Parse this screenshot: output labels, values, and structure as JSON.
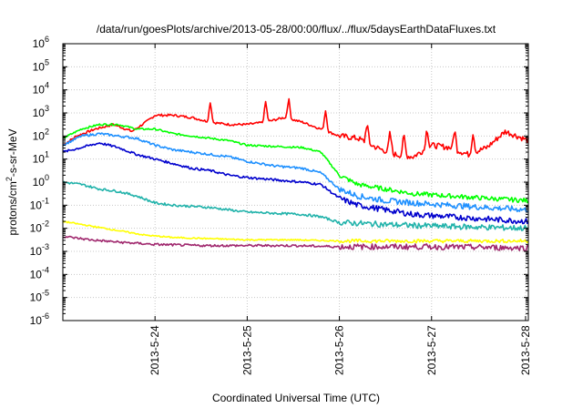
{
  "chart_data": {
    "type": "line",
    "title": "/data/run/goesPlots/archive/2013-05-28/00:00/flux/../flux/5daysEarthDataFluxes.txt",
    "xlabel": "Coordinated Universal Time (UTC)",
    "ylabel_parts": [
      "protons/cm",
      "2",
      "-s-sr-MeV"
    ],
    "ylog": true,
    "ylim_exp": [
      -6,
      6
    ],
    "xlim_days": [
      0,
      5.05
    ],
    "grid": true,
    "y_ticks": [
      {
        "base": "10",
        "exp": "6"
      },
      {
        "base": "10",
        "exp": "5"
      },
      {
        "base": "10",
        "exp": "4"
      },
      {
        "base": "10",
        "exp": "3"
      },
      {
        "base": "10",
        "exp": "2"
      },
      {
        "base": "10",
        "exp": "1"
      },
      {
        "base": "10",
        "exp": "0"
      },
      {
        "base": "10",
        "exp": "-1"
      },
      {
        "base": "10",
        "exp": "-2"
      },
      {
        "base": "10",
        "exp": "-3"
      },
      {
        "base": "10",
        "exp": "-4"
      },
      {
        "base": "10",
        "exp": "-5"
      },
      {
        "base": "10",
        "exp": "-6"
      }
    ],
    "x_ticks": [
      {
        "label": "2013-5-24",
        "day": 1.0
      },
      {
        "label": "2013-5-25",
        "day": 2.0
      },
      {
        "label": "2013-5-26",
        "day": 3.0
      },
      {
        "label": "2013-5-27",
        "day": 4.0
      },
      {
        "label": "2013-5-28",
        "day": 5.02
      }
    ],
    "series": [
      {
        "color": "#ff0000",
        "noise": 0.05,
        "spikes": true,
        "points": [
          [
            0,
            1.6
          ],
          [
            0.15,
            2.0
          ],
          [
            0.35,
            2.3
          ],
          [
            0.55,
            2.5
          ],
          [
            0.75,
            2.2
          ],
          [
            0.9,
            2.6
          ],
          [
            1.0,
            2.9
          ],
          [
            1.2,
            2.9
          ],
          [
            1.4,
            2.8
          ],
          [
            1.6,
            2.6
          ],
          [
            1.8,
            2.5
          ],
          [
            2.0,
            2.5
          ],
          [
            2.2,
            2.6
          ],
          [
            2.4,
            2.8
          ],
          [
            2.6,
            2.6
          ],
          [
            2.8,
            2.3
          ],
          [
            3.0,
            2.0
          ],
          [
            3.2,
            1.9
          ],
          [
            3.4,
            1.5
          ],
          [
            3.6,
            1.2
          ],
          [
            3.8,
            1.1
          ],
          [
            4.0,
            1.6
          ],
          [
            4.2,
            1.5
          ],
          [
            4.4,
            1.2
          ],
          [
            4.6,
            1.5
          ],
          [
            4.8,
            2.2
          ],
          [
            5.05,
            1.8
          ]
        ]
      },
      {
        "color": "#00ff00",
        "noise": 0.04,
        "points": [
          [
            0,
            1.9
          ],
          [
            0.2,
            2.3
          ],
          [
            0.4,
            2.5
          ],
          [
            0.6,
            2.5
          ],
          [
            0.8,
            2.3
          ],
          [
            1.0,
            2.3
          ],
          [
            1.2,
            2.1
          ],
          [
            1.4,
            2.0
          ],
          [
            1.6,
            1.9
          ],
          [
            1.8,
            1.8
          ],
          [
            2.0,
            1.6
          ],
          [
            2.3,
            1.55
          ],
          [
            2.6,
            1.5
          ],
          [
            2.8,
            1.3
          ],
          [
            3.0,
            0.3
          ],
          [
            3.2,
            -0.1
          ],
          [
            3.5,
            -0.3
          ],
          [
            3.8,
            -0.5
          ],
          [
            4.2,
            -0.6
          ],
          [
            4.6,
            -0.7
          ],
          [
            5.05,
            -0.8
          ]
        ]
      },
      {
        "color": "#1e90ff",
        "noise": 0.05,
        "points": [
          [
            0,
            1.6
          ],
          [
            0.2,
            2.0
          ],
          [
            0.4,
            2.1
          ],
          [
            0.6,
            2.0
          ],
          [
            0.8,
            1.9
          ],
          [
            1.0,
            1.6
          ],
          [
            1.2,
            1.4
          ],
          [
            1.4,
            1.3
          ],
          [
            1.6,
            1.2
          ],
          [
            1.8,
            1.1
          ],
          [
            2.0,
            0.9
          ],
          [
            2.3,
            0.7
          ],
          [
            2.6,
            0.6
          ],
          [
            2.8,
            0.4
          ],
          [
            3.0,
            -0.3
          ],
          [
            3.2,
            -0.6
          ],
          [
            3.5,
            -0.8
          ],
          [
            3.8,
            -0.9
          ],
          [
            4.2,
            -1.0
          ],
          [
            4.6,
            -1.1
          ],
          [
            5.05,
            -1.2
          ]
        ]
      },
      {
        "color": "#0000cd",
        "noise": 0.05,
        "points": [
          [
            0,
            1.3
          ],
          [
            0.2,
            1.5
          ],
          [
            0.4,
            1.7
          ],
          [
            0.6,
            1.5
          ],
          [
            0.8,
            1.2
          ],
          [
            1.0,
            1.0
          ],
          [
            1.2,
            0.8
          ],
          [
            1.4,
            0.6
          ],
          [
            1.6,
            0.5
          ],
          [
            1.8,
            0.3
          ],
          [
            2.0,
            0.2
          ],
          [
            2.3,
            0.1
          ],
          [
            2.6,
            0.0
          ],
          [
            2.8,
            -0.1
          ],
          [
            3.0,
            -0.7
          ],
          [
            3.2,
            -1.0
          ],
          [
            3.5,
            -1.2
          ],
          [
            3.8,
            -1.4
          ],
          [
            4.2,
            -1.5
          ],
          [
            4.6,
            -1.6
          ],
          [
            5.05,
            -1.7
          ]
        ]
      },
      {
        "color": "#20b2aa",
        "noise": 0.05,
        "points": [
          [
            0,
            0.0
          ],
          [
            0.2,
            -0.1
          ],
          [
            0.4,
            -0.3
          ],
          [
            0.6,
            -0.4
          ],
          [
            0.8,
            -0.6
          ],
          [
            1.0,
            -0.9
          ],
          [
            1.2,
            -1.0
          ],
          [
            1.4,
            -1.05
          ],
          [
            1.6,
            -1.1
          ],
          [
            1.8,
            -1.2
          ],
          [
            2.0,
            -1.3
          ],
          [
            2.3,
            -1.35
          ],
          [
            2.6,
            -1.4
          ],
          [
            2.8,
            -1.5
          ],
          [
            3.0,
            -1.75
          ],
          [
            3.3,
            -1.8
          ],
          [
            3.6,
            -1.85
          ],
          [
            4.0,
            -1.9
          ],
          [
            4.5,
            -1.95
          ],
          [
            5.05,
            -2.0
          ]
        ]
      },
      {
        "color": "#ffff00",
        "noise": 0.03,
        "points": [
          [
            0,
            -1.7
          ],
          [
            0.3,
            -1.9
          ],
          [
            0.6,
            -2.1
          ],
          [
            0.9,
            -2.3
          ],
          [
            1.2,
            -2.4
          ],
          [
            1.6,
            -2.45
          ],
          [
            2.0,
            -2.5
          ],
          [
            2.5,
            -2.5
          ],
          [
            3.0,
            -2.55
          ],
          [
            3.5,
            -2.55
          ],
          [
            4.0,
            -2.55
          ],
          [
            4.5,
            -2.55
          ],
          [
            5.05,
            -2.55
          ]
        ]
      },
      {
        "color": "#a0286e",
        "noise": 0.05,
        "points": [
          [
            0,
            -2.35
          ],
          [
            0.3,
            -2.5
          ],
          [
            0.6,
            -2.6
          ],
          [
            1.0,
            -2.7
          ],
          [
            1.5,
            -2.75
          ],
          [
            2.0,
            -2.75
          ],
          [
            2.5,
            -2.75
          ],
          [
            3.0,
            -2.8
          ],
          [
            3.5,
            -2.8
          ],
          [
            4.0,
            -2.8
          ],
          [
            5.05,
            -2.85
          ]
        ]
      }
    ]
  }
}
